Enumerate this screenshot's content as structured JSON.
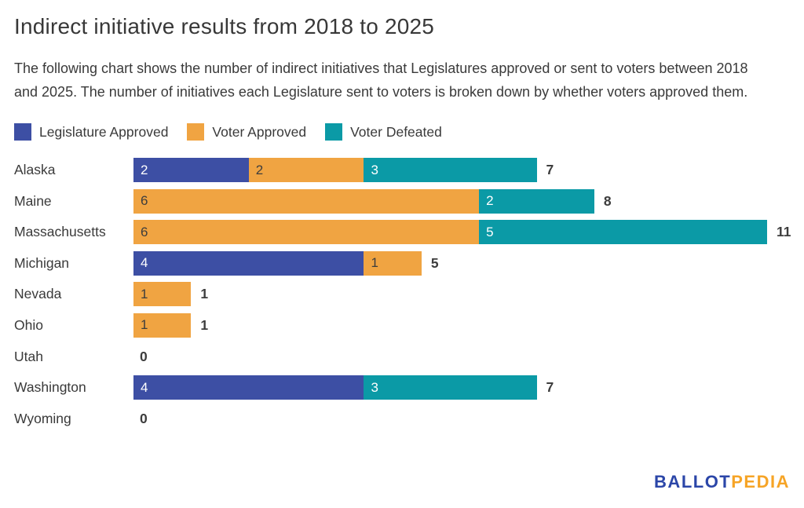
{
  "header": {
    "title": "Indirect initiative results from 2018 to 2025",
    "subtitle": "The following chart shows the number of indirect initiatives that Legislatures approved or sent to voters between 2018 and 2025. The number of initiatives each Legislature sent to voters is broken down by whether voters approved them."
  },
  "legend": [
    {
      "label": "Legislature Approved",
      "color": "#3d4fa4"
    },
    {
      "label": "Voter Approved",
      "color": "#f0a442"
    },
    {
      "label": "Voter Defeated",
      "color": "#0b9aa6"
    }
  ],
  "chart_data": {
    "type": "bar",
    "orientation": "horizontal",
    "stacked": true,
    "title": "Indirect initiative results from 2018 to 2025",
    "categories": [
      "Alaska",
      "Maine",
      "Massachusetts",
      "Michigan",
      "Nevada",
      "Ohio",
      "Utah",
      "Washington",
      "Wyoming"
    ],
    "series": [
      {
        "name": "Legislature Approved",
        "color": "#3d4fa4",
        "label_color": "#ffffff",
        "values": [
          2,
          0,
          0,
          4,
          0,
          0,
          0,
          4,
          0
        ]
      },
      {
        "name": "Voter Approved",
        "color": "#f0a442",
        "label_color": "#3d3d3d",
        "values": [
          2,
          6,
          6,
          1,
          1,
          1,
          0,
          0,
          0
        ]
      },
      {
        "name": "Voter Defeated",
        "color": "#0b9aa6",
        "label_color": "#ffffff",
        "values": [
          3,
          2,
          5,
          0,
          0,
          0,
          0,
          3,
          0
        ]
      }
    ],
    "totals": [
      7,
      8,
      11,
      5,
      1,
      1,
      0,
      7,
      0
    ],
    "xlim": [
      0,
      11
    ],
    "grid": false,
    "legend_position": "top",
    "value_labels": "inside-start",
    "total_labels": "outside-end"
  },
  "footer": {
    "logo": {
      "part1": "BALLOT",
      "part2": "PEDIA"
    }
  }
}
